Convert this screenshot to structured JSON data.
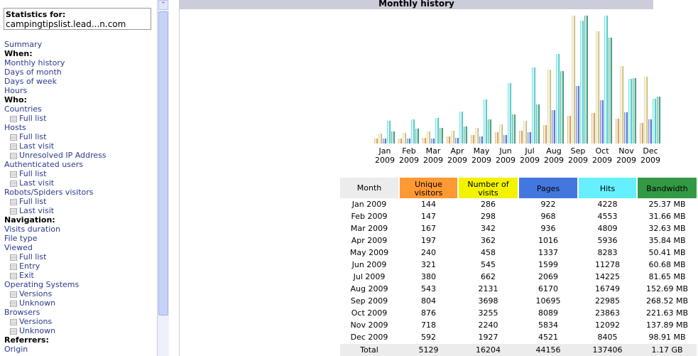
{
  "sidebar": {
    "box_title": "Statistics for:",
    "site": "campingtipslist.lead...n.com",
    "menu": [
      {
        "link": "Summary"
      },
      {
        "heading": "When:"
      },
      {
        "link": "Monthly history"
      },
      {
        "link": "Days of month"
      },
      {
        "link": "Days of week"
      },
      {
        "link": "Hours"
      },
      {
        "heading": "Who:"
      },
      {
        "link": "Countries"
      },
      {
        "sub": "Full list"
      },
      {
        "link": "Hosts"
      },
      {
        "sub": "Full list"
      },
      {
        "sub": "Last visit"
      },
      {
        "sub": "Unresolved IP Address"
      },
      {
        "link": "Authenticated users"
      },
      {
        "sub": "Full list"
      },
      {
        "sub": "Last visit"
      },
      {
        "link": "Robots/Spiders visitors"
      },
      {
        "sub": "Full list"
      },
      {
        "sub": "Last visit"
      },
      {
        "heading": "Navigation:"
      },
      {
        "link": "Visits duration"
      },
      {
        "link": "File type"
      },
      {
        "link": "Viewed"
      },
      {
        "sub": "Full list"
      },
      {
        "sub": "Entry"
      },
      {
        "sub": "Exit"
      },
      {
        "link": "Operating Systems"
      },
      {
        "sub": "Versions"
      },
      {
        "sub": "Unknown"
      },
      {
        "link": "Browsers"
      },
      {
        "sub": "Versions"
      },
      {
        "sub": "Unknown"
      },
      {
        "heading": "Referrers:"
      },
      {
        "link": "Origin"
      }
    ]
  },
  "chart_data": {
    "type": "bar",
    "title": "Monthly history",
    "categories": [
      "Jan 2009",
      "Feb 2009",
      "Mar 2009",
      "Apr 2009",
      "May 2009",
      "Jun 2009",
      "Jul 2009",
      "Aug 2009",
      "Sep 2009",
      "Oct 2009",
      "Nov 2009",
      "Dec 2009"
    ],
    "series": [
      {
        "name": "Unique visitors",
        "color": "#e0a050",
        "header_color": "#ff9933",
        "values": [
          144,
          147,
          167,
          197,
          240,
          321,
          380,
          543,
          804,
          876,
          718,
          592
        ]
      },
      {
        "name": "Number of visits",
        "color": "#dccf80",
        "header_color": "#f3f300",
        "values": [
          286,
          298,
          342,
          362,
          458,
          545,
          662,
          2131,
          3698,
          3255,
          2240,
          1927
        ]
      },
      {
        "name": "Pages",
        "color": "#3a5fd0",
        "header_color": "#4477dd",
        "values": [
          922,
          968,
          936,
          1016,
          1337,
          1599,
          2069,
          6170,
          10695,
          8089,
          5834,
          4521
        ]
      },
      {
        "name": "Hits",
        "color": "#3fd8d8",
        "header_color": "#66f0ff",
        "values": [
          4228,
          4553,
          4809,
          5936,
          8283,
          11278,
          14225,
          16749,
          22985,
          23863,
          12092,
          8405
        ]
      },
      {
        "name": "Bandwidth",
        "color": "#1a9a7a",
        "header_color": "#339944",
        "values": [
          25.37,
          31.66,
          32.63,
          35.84,
          50.41,
          60.68,
          81.65,
          152.69,
          268.52,
          221.63,
          137.89,
          98.91
        ],
        "value_labels": [
          "25.37 MB",
          "31.66 MB",
          "32.63 MB",
          "35.84 MB",
          "50.41 MB",
          "60.68 MB",
          "81.65 MB",
          "152.69 MB",
          "268.52 MB",
          "221.63 MB",
          "137.89 MB",
          "98.91 MB"
        ]
      }
    ]
  },
  "table": {
    "month_header": "Month",
    "total_label": "Total",
    "totals": [
      5129,
      16204,
      44156,
      137406,
      "1.17 GB"
    ]
  }
}
